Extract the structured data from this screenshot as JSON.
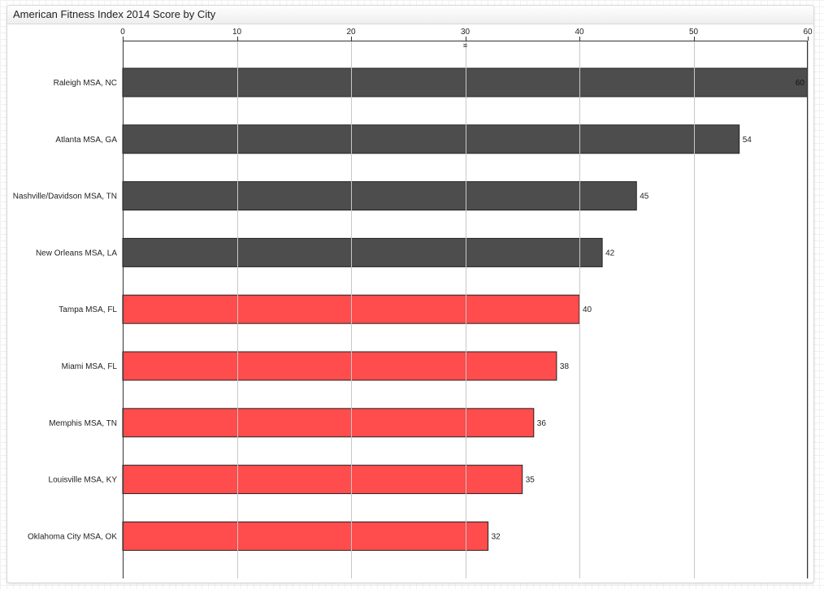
{
  "widget": {
    "title": "American Fitness Index 2014 Score by City"
  },
  "chart_data": {
    "type": "bar",
    "orientation": "horizontal",
    "title": "American Fitness Index 2014 Score by City",
    "xlabel": "",
    "ylabel": "",
    "xlim": [
      0,
      60
    ],
    "x_ticks": [
      0,
      10,
      20,
      30,
      40,
      50,
      60
    ],
    "x_axis_position": "top",
    "grid": true,
    "categories": [
      "Raleigh MSA, NC",
      "Atlanta MSA, GA",
      "Nashville/Davidson MSA, TN",
      "New Orleans MSA, LA",
      "Tampa MSA, FL",
      "Miami MSA, FL",
      "Memphis MSA, TN",
      "Louisville MSA, KY",
      "Oklahoma City MSA, OK"
    ],
    "values": [
      60,
      54,
      45,
      42,
      40,
      38,
      36,
      35,
      32
    ],
    "bar_colors": [
      "#4d4d4d",
      "#4d4d4d",
      "#4d4d4d",
      "#4d4d4d",
      "#ff4c4c",
      "#ff4c4c",
      "#ff4c4c",
      "#ff4c4c",
      "#ff4c4c"
    ],
    "data_labels": [
      "60",
      "54",
      "45",
      "42",
      "40",
      "38",
      "36",
      "35",
      "32"
    ],
    "axis_marker_glyph": "≡"
  },
  "colors": {
    "dark_bar": "#4d4d4d",
    "red_bar": "#ff4c4c",
    "grid": "#c8c8c8",
    "axis": "#333333"
  }
}
